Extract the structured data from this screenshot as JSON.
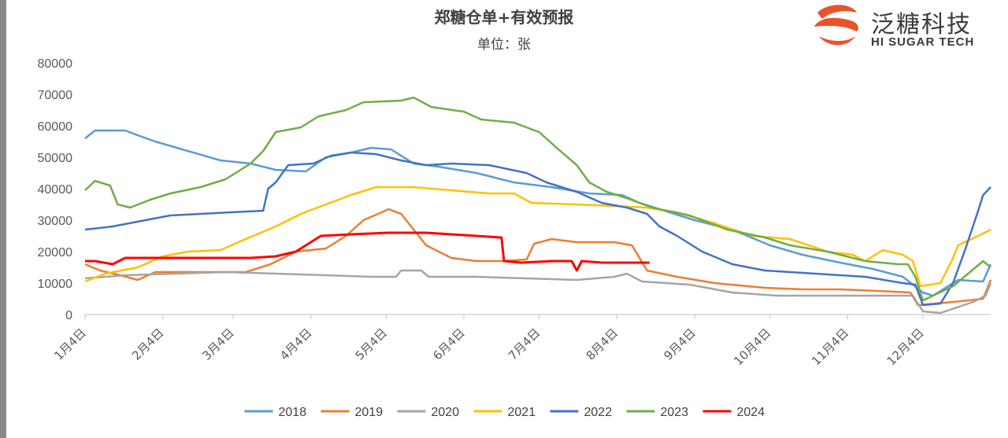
{
  "title": "郑糖仓单+有效预报",
  "subtitle": "单位：张",
  "logo": {
    "cn": "泛糖科技",
    "en": "HI SUGAR TECH",
    "icon": "hi-sugar-logo-icon",
    "color": "#e8542a"
  },
  "chart_data": {
    "type": "line",
    "title": "郑糖仓单+有效预报",
    "subtitle": "单位：张",
    "ylim": [
      0,
      80000
    ],
    "yticks": [
      "80000",
      "70000",
      "60000",
      "50000",
      "40000",
      "30000",
      "20000",
      "10000",
      "0"
    ],
    "xlim": [
      4,
      365
    ],
    "xticks": [
      {
        "label": "1月4日",
        "day": 4
      },
      {
        "label": "2月4日",
        "day": 35
      },
      {
        "label": "3月4日",
        "day": 63
      },
      {
        "label": "4月4日",
        "day": 94
      },
      {
        "label": "5月4日",
        "day": 124
      },
      {
        "label": "6月4日",
        "day": 155
      },
      {
        "label": "7月4日",
        "day": 185
      },
      {
        "label": "8月4日",
        "day": 216
      },
      {
        "label": "9月4日",
        "day": 247
      },
      {
        "label": "10月4日",
        "day": 277
      },
      {
        "label": "11月4日",
        "day": 308
      },
      {
        "label": "12月4日",
        "day": 338
      }
    ],
    "x_unit": "day of year",
    "grid": false,
    "legend_position": "bottom",
    "series": [
      {
        "name": "2018",
        "color": "#5b9bd5",
        "points": [
          [
            4,
            56000
          ],
          [
            8,
            58500
          ],
          [
            20,
            58500
          ],
          [
            25,
            57000
          ],
          [
            32,
            55000
          ],
          [
            45,
            52000
          ],
          [
            58,
            49000
          ],
          [
            70,
            48000
          ],
          [
            80,
            46000
          ],
          [
            92,
            45500
          ],
          [
            100,
            50000
          ],
          [
            110,
            51500
          ],
          [
            118,
            53000
          ],
          [
            126,
            52500
          ],
          [
            135,
            48000
          ],
          [
            145,
            47000
          ],
          [
            160,
            45000
          ],
          [
            175,
            42000
          ],
          [
            190,
            40500
          ],
          [
            205,
            38500
          ],
          [
            218,
            38000
          ],
          [
            225,
            35500
          ],
          [
            235,
            33000
          ],
          [
            247,
            30000
          ],
          [
            262,
            27000
          ],
          [
            277,
            22000
          ],
          [
            290,
            19000
          ],
          [
            305,
            16500
          ],
          [
            318,
            14500
          ],
          [
            330,
            12000
          ],
          [
            338,
            7000
          ],
          [
            342,
            6000
          ],
          [
            352,
            11000
          ],
          [
            362,
            10500
          ],
          [
            365,
            16000
          ]
        ]
      },
      {
        "name": "2019",
        "color": "#ed7d31",
        "points": [
          [
            4,
            16000
          ],
          [
            10,
            14000
          ],
          [
            18,
            12500
          ],
          [
            25,
            11000
          ],
          [
            32,
            13500
          ],
          [
            55,
            13500
          ],
          [
            68,
            13500
          ],
          [
            78,
            16000
          ],
          [
            88,
            20000
          ],
          [
            100,
            21000
          ],
          [
            108,
            25000
          ],
          [
            115,
            30000
          ],
          [
            125,
            33500
          ],
          [
            130,
            32000
          ],
          [
            135,
            27000
          ],
          [
            140,
            22000
          ],
          [
            150,
            18000
          ],
          [
            160,
            17000
          ],
          [
            170,
            17000
          ],
          [
            180,
            17500
          ],
          [
            183,
            22500
          ],
          [
            190,
            24000
          ],
          [
            200,
            23000
          ],
          [
            215,
            23000
          ],
          [
            222,
            22000
          ],
          [
            228,
            14000
          ],
          [
            240,
            12000
          ],
          [
            255,
            10000
          ],
          [
            275,
            8500
          ],
          [
            290,
            8000
          ],
          [
            305,
            8000
          ],
          [
            320,
            7500
          ],
          [
            333,
            7000
          ],
          [
            336,
            3000
          ],
          [
            350,
            4000
          ],
          [
            362,
            5000
          ],
          [
            365,
            11000
          ]
        ]
      },
      {
        "name": "2020",
        "color": "#a5a5a5",
        "points": [
          [
            4,
            11500
          ],
          [
            20,
            12500
          ],
          [
            40,
            13000
          ],
          [
            60,
            13500
          ],
          [
            80,
            13000
          ],
          [
            100,
            12500
          ],
          [
            118,
            12000
          ],
          [
            128,
            12000
          ],
          [
            130,
            14000
          ],
          [
            138,
            14000
          ],
          [
            141,
            12000
          ],
          [
            160,
            12000
          ],
          [
            180,
            11500
          ],
          [
            200,
            11000
          ],
          [
            215,
            12000
          ],
          [
            220,
            13000
          ],
          [
            226,
            10500
          ],
          [
            245,
            9500
          ],
          [
            262,
            7000
          ],
          [
            280,
            6000
          ],
          [
            300,
            6000
          ],
          [
            320,
            6000
          ],
          [
            334,
            6000
          ],
          [
            338,
            1000
          ],
          [
            345,
            500
          ],
          [
            358,
            4000
          ],
          [
            363,
            6000
          ],
          [
            365,
            10000
          ]
        ]
      },
      {
        "name": "2021",
        "color": "#ffc000",
        "points": [
          [
            4,
            10500
          ],
          [
            12,
            13000
          ],
          [
            25,
            15000
          ],
          [
            35,
            18500
          ],
          [
            45,
            20000
          ],
          [
            58,
            20500
          ],
          [
            68,
            24000
          ],
          [
            80,
            28000
          ],
          [
            90,
            32000
          ],
          [
            100,
            35000
          ],
          [
            110,
            38000
          ],
          [
            120,
            40500
          ],
          [
            135,
            40500
          ],
          [
            150,
            39500
          ],
          [
            165,
            38500
          ],
          [
            175,
            38500
          ],
          [
            182,
            35500
          ],
          [
            200,
            35000
          ],
          [
            215,
            34500
          ],
          [
            228,
            34000
          ],
          [
            240,
            32500
          ],
          [
            255,
            29000
          ],
          [
            270,
            25000
          ],
          [
            285,
            24000
          ],
          [
            300,
            20000
          ],
          [
            310,
            19000
          ],
          [
            315,
            17000
          ],
          [
            322,
            20500
          ],
          [
            330,
            19000
          ],
          [
            334,
            17000
          ],
          [
            337,
            9000
          ],
          [
            345,
            10000
          ],
          [
            350,
            18000
          ],
          [
            352,
            22000
          ],
          [
            360,
            25000
          ],
          [
            365,
            27000
          ]
        ]
      },
      {
        "name": "2022",
        "color": "#4472c4",
        "points": [
          [
            4,
            27000
          ],
          [
            15,
            28000
          ],
          [
            28,
            30000
          ],
          [
            38,
            31500
          ],
          [
            50,
            32000
          ],
          [
            62,
            32500
          ],
          [
            75,
            33000
          ],
          [
            77,
            40000
          ],
          [
            80,
            42000
          ],
          [
            85,
            47500
          ],
          [
            95,
            48000
          ],
          [
            102,
            50500
          ],
          [
            110,
            51500
          ],
          [
            120,
            51000
          ],
          [
            130,
            49000
          ],
          [
            140,
            47500
          ],
          [
            150,
            48000
          ],
          [
            165,
            47500
          ],
          [
            180,
            45000
          ],
          [
            188,
            42000
          ],
          [
            200,
            39000
          ],
          [
            210,
            35500
          ],
          [
            220,
            34000
          ],
          [
            228,
            32000
          ],
          [
            233,
            28000
          ],
          [
            240,
            25000
          ],
          [
            250,
            20000
          ],
          [
            262,
            16000
          ],
          [
            275,
            14000
          ],
          [
            295,
            13000
          ],
          [
            315,
            12000
          ],
          [
            330,
            10000
          ],
          [
            335,
            9500
          ],
          [
            338,
            3000
          ],
          [
            345,
            3500
          ],
          [
            350,
            10000
          ],
          [
            355,
            21000
          ],
          [
            360,
            33000
          ],
          [
            362,
            38000
          ],
          [
            365,
            40500
          ]
        ]
      },
      {
        "name": "2023",
        "color": "#70ad47",
        "points": [
          [
            4,
            39500
          ],
          [
            8,
            42500
          ],
          [
            14,
            41000
          ],
          [
            17,
            35000
          ],
          [
            22,
            34000
          ],
          [
            30,
            36500
          ],
          [
            38,
            38500
          ],
          [
            50,
            40500
          ],
          [
            60,
            43000
          ],
          [
            70,
            48000
          ],
          [
            75,
            52000
          ],
          [
            80,
            58000
          ],
          [
            90,
            59500
          ],
          [
            97,
            63000
          ],
          [
            108,
            65000
          ],
          [
            115,
            67500
          ],
          [
            130,
            68000
          ],
          [
            135,
            69000
          ],
          [
            142,
            66000
          ],
          [
            155,
            64500
          ],
          [
            162,
            62000
          ],
          [
            175,
            61000
          ],
          [
            185,
            58000
          ],
          [
            192,
            53000
          ],
          [
            200,
            47500
          ],
          [
            205,
            42000
          ],
          [
            212,
            39000
          ],
          [
            220,
            37000
          ],
          [
            230,
            34000
          ],
          [
            245,
            31500
          ],
          [
            260,
            27000
          ],
          [
            275,
            24500
          ],
          [
            285,
            22000
          ],
          [
            300,
            20000
          ],
          [
            315,
            17000
          ],
          [
            328,
            16000
          ],
          [
            332,
            16000
          ],
          [
            335,
            12000
          ],
          [
            338,
            4500
          ],
          [
            350,
            9000
          ],
          [
            356,
            13000
          ],
          [
            362,
            17000
          ],
          [
            365,
            15000
          ]
        ]
      },
      {
        "name": "2024",
        "color": "#ff0000",
        "points": [
          [
            4,
            17000
          ],
          [
            8,
            17000
          ],
          [
            15,
            16000
          ],
          [
            20,
            18000
          ],
          [
            40,
            18000
          ],
          [
            55,
            18000
          ],
          [
            70,
            18000
          ],
          [
            80,
            18500
          ],
          [
            88,
            20000
          ],
          [
            98,
            25000
          ],
          [
            110,
            25500
          ],
          [
            125,
            26000
          ],
          [
            140,
            26000
          ],
          [
            150,
            25500
          ],
          [
            160,
            25000
          ],
          [
            170,
            24500
          ],
          [
            171,
            17000
          ],
          [
            178,
            16500
          ],
          [
            190,
            17000
          ],
          [
            198,
            17000
          ],
          [
            200,
            14000
          ],
          [
            202,
            17000
          ],
          [
            210,
            16500
          ],
          [
            225,
            16500
          ],
          [
            229,
            16500
          ]
        ]
      }
    ]
  }
}
